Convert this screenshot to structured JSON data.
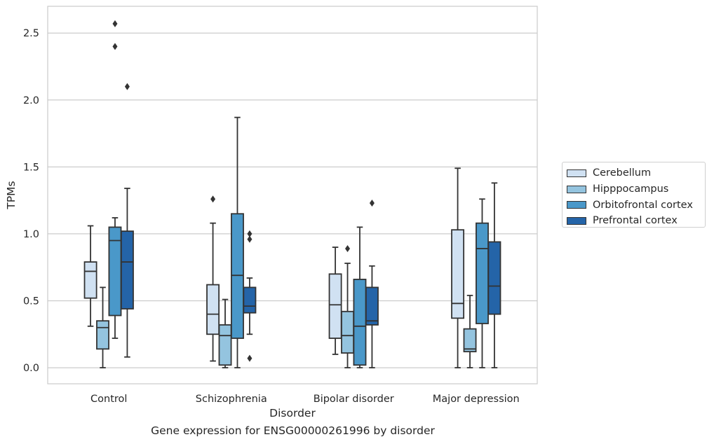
{
  "caption": "Gene expression for ENSG00000261996 by disorder",
  "chart_data": {
    "type": "box",
    "xlabel": "Disorder",
    "ylabel": "TPMs",
    "ylim": [
      -0.12,
      2.7
    ],
    "yticks": [
      0.0,
      0.5,
      1.0,
      1.5,
      2.0,
      2.5
    ],
    "ytick_labels": [
      "0.0",
      "0.5",
      "1.0",
      "1.5",
      "2.0",
      "2.5"
    ],
    "grid": true,
    "legend_position": "right",
    "categories": [
      "Control",
      "Schizophrenia",
      "Bipolar disorder",
      "Major depression"
    ],
    "series": [
      {
        "name": "Cerebellum",
        "color": "#d0e1f2",
        "boxes": [
          {
            "whisker_low": 0.31,
            "q1": 0.52,
            "median": 0.72,
            "q3": 0.79,
            "whisker_high": 1.06,
            "outliers": []
          },
          {
            "whisker_low": 0.05,
            "q1": 0.25,
            "median": 0.4,
            "q3": 0.62,
            "whisker_high": 1.08,
            "outliers": [
              1.26
            ]
          },
          {
            "whisker_low": 0.1,
            "q1": 0.22,
            "median": 0.47,
            "q3": 0.7,
            "whisker_high": 0.9,
            "outliers": []
          },
          {
            "whisker_low": 0.0,
            "q1": 0.37,
            "median": 0.48,
            "q3": 1.03,
            "whisker_high": 1.49,
            "outliers": []
          }
        ]
      },
      {
        "name": "Hipppocampus",
        "color": "#94c4df",
        "boxes": [
          {
            "whisker_low": 0.0,
            "q1": 0.14,
            "median": 0.3,
            "q3": 0.35,
            "whisker_high": 0.6,
            "outliers": []
          },
          {
            "whisker_low": 0.0,
            "q1": 0.02,
            "median": 0.24,
            "q3": 0.32,
            "whisker_high": 0.51,
            "outliers": []
          },
          {
            "whisker_low": 0.0,
            "q1": 0.11,
            "median": 0.24,
            "q3": 0.42,
            "whisker_high": 0.78,
            "outliers": [
              0.89
            ]
          },
          {
            "whisker_low": 0.0,
            "q1": 0.12,
            "median": 0.14,
            "q3": 0.29,
            "whisker_high": 0.54,
            "outliers": []
          }
        ]
      },
      {
        "name": "Orbitofrontal cortex",
        "color": "#4a98c9",
        "boxes": [
          {
            "whisker_low": 0.22,
            "q1": 0.39,
            "median": 0.95,
            "q3": 1.05,
            "whisker_high": 1.12,
            "outliers": [
              2.4,
              2.57
            ]
          },
          {
            "whisker_low": 0.0,
            "q1": 0.22,
            "median": 0.69,
            "q3": 1.15,
            "whisker_high": 1.87,
            "outliers": []
          },
          {
            "whisker_low": 0.0,
            "q1": 0.02,
            "median": 0.31,
            "q3": 0.66,
            "whisker_high": 1.05,
            "outliers": []
          },
          {
            "whisker_low": 0.0,
            "q1": 0.33,
            "median": 0.89,
            "q3": 1.08,
            "whisker_high": 1.26,
            "outliers": []
          }
        ]
      },
      {
        "name": "Prefrontal cortex",
        "color": "#2464a8",
        "boxes": [
          {
            "whisker_low": 0.08,
            "q1": 0.44,
            "median": 0.79,
            "q3": 1.02,
            "whisker_high": 1.34,
            "outliers": [
              2.1
            ]
          },
          {
            "whisker_low": 0.25,
            "q1": 0.41,
            "median": 0.46,
            "q3": 0.6,
            "whisker_high": 0.67,
            "outliers": [
              0.07,
              0.96,
              1.0
            ]
          },
          {
            "whisker_low": 0.0,
            "q1": 0.32,
            "median": 0.35,
            "q3": 0.6,
            "whisker_high": 0.76,
            "outliers": [
              1.23
            ]
          },
          {
            "whisker_low": 0.0,
            "q1": 0.4,
            "median": 0.61,
            "q3": 0.94,
            "whisker_high": 1.38,
            "outliers": []
          }
        ]
      }
    ]
  }
}
